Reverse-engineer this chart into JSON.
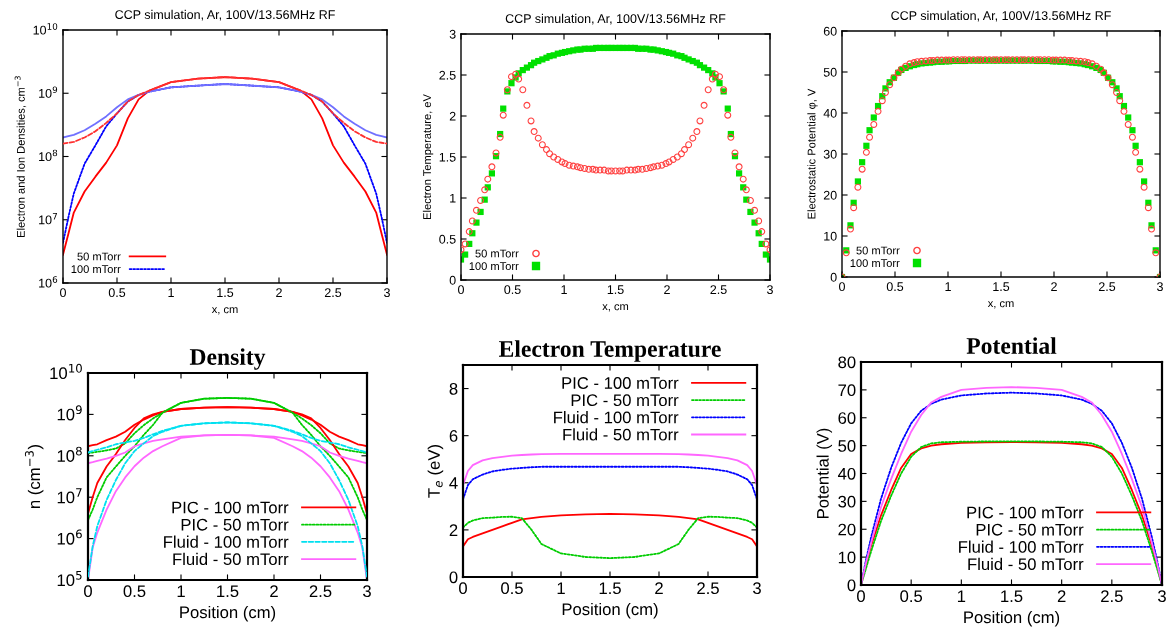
{
  "chart_data": [
    {
      "type": "line",
      "title": "CCP simulation, Ar, 100V/13.56MHz RF",
      "xlabel": "x, cm",
      "ylabel": "Electron and Ion Densities, cm$^{−3}$",
      "log": "y",
      "legend": "bottom left",
      "xlim": [
        0,
        3
      ],
      "ylim": [
        1000000,
        10000000000
      ],
      "xticks": [
        0,
        0.5,
        1,
        1.5,
        2,
        2.5,
        3
      ],
      "yticks": [
        {
          "value": 1000000,
          "label": "10$^{6}$"
        },
        {
          "value": 10000000,
          "label": "10$^{7}$"
        },
        {
          "value": 100000000,
          "label": "10$^{8}$"
        },
        {
          "value": 1000000000,
          "label": "10$^{9}$"
        },
        {
          "value": 10000000000,
          "label": "10$^{10}$"
        }
      ],
      "x": [
        0,
        0.05,
        0.1,
        0.2,
        0.3,
        0.4,
        0.5,
        0.6,
        0.7,
        0.8,
        1,
        1.25,
        1.5,
        1.75,
        2,
        2.2,
        2.3,
        2.4,
        2.5,
        2.6,
        2.7,
        2.8,
        2.9,
        2.95,
        3
      ],
      "series": [
        {
          "name": "50 mTorr",
          "color": "#ff0000",
          "line_style": "solid",
          "values": [
            2800000.0,
            6000000.0,
            13000000.0,
            28000000.0,
            48000000.0,
            80000000.0,
            150000000.0,
            400000000.0,
            800000000.0,
            1100000000.0,
            1500000000.0,
            1700000000.0,
            1800000000.0,
            1700000000.0,
            1500000000.0,
            1100000000.0,
            800000000.0,
            400000000.0,
            150000000.0,
            80000000.0,
            48000000.0,
            28000000.0,
            13000000.0,
            6000000.0,
            2800000.0
          ]
        },
        {
          "name": "100 mTorr",
          "color": "#0000ff",
          "line_style": "dotted",
          "values": [
            4300000.0,
            11000000.0,
            26000000.0,
            77000000.0,
            150000000.0,
            300000000.0,
            480000000.0,
            740000000.0,
            940000000.0,
            1060000000.0,
            1240000000.0,
            1320000000.0,
            1400000000.0,
            1320000000.0,
            1240000000.0,
            1060000000.0,
            940000000.0,
            740000000.0,
            480000000.0,
            300000000.0,
            150000000.0,
            77000000.0,
            26000000.0,
            11000000.0,
            4300000.0
          ]
        },
        {
          "color": "#ff3030",
          "line_style": "dashed",
          "values": [
            160000000.0,
            165000000.0,
            170000000.0,
            200000000.0,
            250000000.0,
            340000000.0,
            480000000.0,
            740000000.0,
            940000000.0,
            1100000000.0,
            1500000000.0,
            1700000000.0,
            1800000000.0,
            1700000000.0,
            1500000000.0,
            1100000000.0,
            940000000.0,
            740000000.0,
            480000000.0,
            340000000.0,
            250000000.0,
            200000000.0,
            170000000.0,
            165000000.0,
            160000000.0
          ]
        },
        {
          "color": "#7070ff",
          "line_style": "solid",
          "values": [
            200000000.0,
            210000000.0,
            220000000.0,
            260000000.0,
            330000000.0,
            430000000.0,
            600000000.0,
            800000000.0,
            940000000.0,
            1060000000.0,
            1240000000.0,
            1320000000.0,
            1400000000.0,
            1320000000.0,
            1240000000.0,
            1060000000.0,
            940000000.0,
            800000000.0,
            600000000.0,
            430000000.0,
            330000000.0,
            260000000.0,
            220000000.0,
            210000000.0,
            200000000.0
          ]
        }
      ]
    },
    {
      "type": "scatter",
      "title": "CCP simulation, Ar, 100V/13.56MHz RF",
      "xlabel": "x, cm",
      "ylabel": "Electron Temperature, eV",
      "legend": "bottom left",
      "xlim": [
        0,
        3
      ],
      "ylim": [
        0,
        3
      ],
      "xticks": [
        0,
        0.5,
        1,
        1.5,
        2,
        2.5,
        3
      ],
      "yticks": [
        0,
        0.5,
        1,
        1.5,
        2,
        2.5,
        3
      ],
      "x": [
        0,
        0.04,
        0.08,
        0.11,
        0.15,
        0.19,
        0.23,
        0.26,
        0.3,
        0.34,
        0.38,
        0.41,
        0.45,
        0.49,
        0.53,
        0.56,
        0.6,
        0.64,
        0.68,
        0.71,
        0.75,
        0.79,
        0.83,
        0.86,
        0.9,
        0.94,
        0.98,
        1.01,
        1.05,
        1.09,
        1.13,
        1.16,
        1.2,
        1.24,
        1.28,
        1.31,
        1.35,
        1.39,
        1.43,
        1.46,
        1.5,
        1.54,
        1.57,
        1.61,
        1.65,
        1.69,
        1.72,
        1.76,
        1.8,
        1.84,
        1.87,
        1.91,
        1.95,
        1.99,
        2.02,
        2.06,
        2.1,
        2.14,
        2.17,
        2.21,
        2.25,
        2.29,
        2.32,
        2.36,
        2.4,
        2.44,
        2.47,
        2.51,
        2.55,
        2.59,
        2.62,
        2.66,
        2.7,
        2.74,
        2.77,
        2.81,
        2.85,
        2.89,
        2.92,
        2.96,
        3
      ],
      "series": [
        {
          "name": "50 mTorr",
          "color": "#ff4040",
          "marker": "circle",
          "values": [
            0.37,
            0.44,
            0.59,
            0.72,
            0.85,
            0.97,
            1.1,
            1.23,
            1.38,
            1.55,
            1.74,
            2.01,
            2.32,
            2.48,
            2.51,
            2.45,
            2.32,
            2.13,
            1.94,
            1.81,
            1.73,
            1.65,
            1.59,
            1.54,
            1.5,
            1.47,
            1.44,
            1.42,
            1.4,
            1.39,
            1.38,
            1.37,
            1.36,
            1.35,
            1.35,
            1.34,
            1.34,
            1.34,
            1.33,
            1.33,
            1.33,
            1.33,
            1.33,
            1.34,
            1.34,
            1.34,
            1.35,
            1.35,
            1.36,
            1.37,
            1.38,
            1.39,
            1.4,
            1.42,
            1.44,
            1.47,
            1.5,
            1.54,
            1.59,
            1.65,
            1.73,
            1.81,
            1.94,
            2.13,
            2.32,
            2.45,
            2.51,
            2.48,
            2.32,
            2.01,
            1.74,
            1.55,
            1.38,
            1.23,
            1.1,
            0.97,
            0.85,
            0.72,
            0.59,
            0.44,
            0.37
          ]
        },
        {
          "name": "100 mTorr",
          "color": "#00e000",
          "marker": "square",
          "values": [
            0.25,
            0.31,
            0.44,
            0.57,
            0.7,
            0.83,
            0.98,
            1.13,
            1.3,
            1.51,
            1.78,
            2.09,
            2.3,
            2.4,
            2.47,
            2.52,
            2.56,
            2.59,
            2.62,
            2.65,
            2.67,
            2.69,
            2.71,
            2.73,
            2.74,
            2.76,
            2.77,
            2.78,
            2.79,
            2.8,
            2.81,
            2.81,
            2.82,
            2.82,
            2.82,
            2.83,
            2.83,
            2.83,
            2.83,
            2.83,
            2.83,
            2.83,
            2.83,
            2.83,
            2.83,
            2.83,
            2.82,
            2.82,
            2.82,
            2.81,
            2.81,
            2.8,
            2.79,
            2.78,
            2.77,
            2.76,
            2.74,
            2.73,
            2.71,
            2.69,
            2.67,
            2.65,
            2.62,
            2.59,
            2.56,
            2.52,
            2.47,
            2.4,
            2.3,
            2.09,
            1.78,
            1.51,
            1.3,
            1.13,
            0.98,
            0.83,
            0.7,
            0.57,
            0.44,
            0.31,
            0.25
          ]
        }
      ]
    },
    {
      "type": "scatter",
      "title": "CCP simulation, Ar, 100V/13.56MHz RF",
      "xlabel": "x, cm",
      "ylabel": "Electrostatic Potential φ, V",
      "legend": "bottom left",
      "xlim": [
        0,
        3
      ],
      "ylim": [
        0,
        60
      ],
      "xticks": [
        0,
        0.5,
        1,
        1.5,
        2,
        2.5,
        3
      ],
      "yticks": [
        0,
        10,
        20,
        30,
        40,
        50,
        60
      ],
      "x": [
        0,
        0.04,
        0.08,
        0.11,
        0.15,
        0.19,
        0.23,
        0.26,
        0.3,
        0.34,
        0.38,
        0.41,
        0.45,
        0.49,
        0.53,
        0.56,
        0.6,
        0.64,
        0.68,
        0.71,
        0.75,
        0.79,
        0.83,
        0.86,
        0.9,
        0.94,
        0.98,
        1.01,
        1.05,
        1.09,
        1.13,
        1.16,
        1.2,
        1.24,
        1.28,
        1.31,
        1.35,
        1.39,
        1.43,
        1.46,
        1.5,
        1.54,
        1.57,
        1.61,
        1.65,
        1.69,
        1.72,
        1.76,
        1.8,
        1.84,
        1.87,
        1.91,
        1.95,
        1.99,
        2.02,
        2.06,
        2.1,
        2.14,
        2.17,
        2.21,
        2.25,
        2.29,
        2.32,
        2.36,
        2.4,
        2.44,
        2.47,
        2.51,
        2.55,
        2.59,
        2.62,
        2.66,
        2.7,
        2.74,
        2.77,
        2.81,
        2.85,
        2.89,
        2.92,
        2.96,
        3
      ],
      "series": [
        {
          "name": "50 mTorr",
          "color": "#ff4040",
          "marker": "circle",
          "values": [
            0,
            5.9,
            11.7,
            16.9,
            21.9,
            26.3,
            30.4,
            34.1,
            37.2,
            40.4,
            43,
            45,
            46.9,
            48.6,
            49.8,
            50.7,
            51.4,
            52,
            52.3,
            52.5,
            52.6,
            52.7,
            52.8,
            52.8,
            52.9,
            52.9,
            52.9,
            52.9,
            53,
            53,
            53,
            53,
            53,
            53,
            53,
            53,
            53,
            53,
            53,
            53,
            53,
            53,
            53,
            53,
            53,
            53,
            53,
            53,
            53,
            53,
            53,
            53,
            53,
            52.9,
            52.9,
            52.9,
            52.9,
            52.8,
            52.8,
            52.7,
            52.6,
            52.5,
            52.3,
            52,
            51.4,
            50.7,
            49.8,
            48.6,
            46.9,
            45,
            43,
            40.4,
            37.2,
            34.1,
            30.4,
            26.3,
            21.9,
            16.9,
            11.7,
            5.9,
            0
          ]
        },
        {
          "name": "100 mTorr",
          "color": "#00e000",
          "marker": "square",
          "values": [
            0,
            6.5,
            12.6,
            18.1,
            23.3,
            28,
            32,
            35.8,
            38.9,
            41.7,
            44.1,
            46,
            47.5,
            48.6,
            49.8,
            50.5,
            51,
            51.4,
            51.7,
            51.9,
            52.1,
            52.2,
            52.3,
            52.4,
            52.5,
            52.5,
            52.6,
            52.6,
            52.7,
            52.7,
            52.7,
            52.7,
            52.8,
            52.8,
            52.8,
            52.8,
            52.8,
            52.8,
            52.8,
            52.8,
            52.8,
            52.8,
            52.8,
            52.8,
            52.8,
            52.8,
            52.8,
            52.8,
            52.8,
            52.7,
            52.7,
            52.7,
            52.7,
            52.6,
            52.6,
            52.5,
            52.5,
            52.4,
            52.3,
            52.2,
            52.1,
            51.9,
            51.7,
            51.4,
            51,
            50.5,
            49.8,
            48.6,
            47.5,
            46,
            44.1,
            41.7,
            38.9,
            35.8,
            32,
            28,
            23.3,
            18.1,
            12.6,
            6.5,
            0
          ]
        }
      ]
    },
    {
      "type": "line",
      "title": "Density",
      "xlabel": "Position (cm)",
      "ylabel": "n (cm$^{−3}$)",
      "log": "y",
      "legend": "bottom right",
      "xlim": [
        0,
        3
      ],
      "ylim": [
        100000,
        10000000000
      ],
      "xticks": [
        0,
        0.5,
        1,
        1.5,
        2,
        2.5,
        3
      ],
      "yticks": [
        {
          "value": 100000,
          "label": "10$^{5}$"
        },
        {
          "value": 1000000,
          "label": "10$^{6}$"
        },
        {
          "value": 10000000,
          "label": "10$^{7}$"
        },
        {
          "value": 100000000,
          "label": "10$^{8}$"
        },
        {
          "value": 1000000000,
          "label": "10$^{9}$"
        },
        {
          "value": 10000000000,
          "label": "10$^{10}$"
        }
      ],
      "x": [
        0,
        0.05,
        0.1,
        0.2,
        0.3,
        0.4,
        0.5,
        0.6,
        0.7,
        0.8,
        1,
        1.25,
        1.5,
        1.75,
        2,
        2.2,
        2.3,
        2.4,
        2.5,
        2.6,
        2.7,
        2.8,
        2.9,
        2.95,
        3
      ],
      "series": [
        {
          "name": "PIC - 100 mTorr",
          "color": "#ff0000",
          "line_style": "solid",
          "values": [
            170000000.0,
            180000000.0,
            190000000.0,
            240000000.0,
            290000000.0,
            380000000.0,
            560000000.0,
            750000000.0,
            950000000.0,
            1150000000.0,
            1350000000.0,
            1450000000.0,
            1500000000.0,
            1450000000.0,
            1350000000.0,
            1150000000.0,
            950000000.0,
            750000000.0,
            560000000.0,
            380000000.0,
            290000000.0,
            240000000.0,
            190000000.0,
            180000000.0,
            170000000.0
          ]
        },
        {
          "name": "PIC - 50 mTorr",
          "color": "#00cc00",
          "line_style": "dotted",
          "values": [
            115000000.0,
            120000000.0,
            125000000.0,
            135000000.0,
            150000000.0,
            200000000.0,
            350000000.0,
            550000000.0,
            800000000.0,
            1100000000.0,
            1900000000.0,
            2400000000.0,
            2500000000.0,
            2400000000.0,
            1900000000.0,
            1100000000.0,
            800000000.0,
            550000000.0,
            350000000.0,
            200000000.0,
            150000000.0,
            135000000.0,
            125000000.0,
            120000000.0,
            115000000.0
          ]
        },
        {
          "name": "Fluid - 100 mTorr",
          "color": "#00e0f0",
          "line_style": "dashed",
          "values": [
            120000.0,
            650000.0,
            2000000.0,
            8600000.0,
            26000000.0,
            66000000.0,
            130000000.0,
            200000000.0,
            300000000.0,
            380000000.0,
            530000000.0,
            610000000.0,
            640000000.0,
            610000000.0,
            530000000.0,
            380000000.0,
            300000000.0,
            200000000.0,
            130000000.0,
            66000000.0,
            26000000.0,
            8600000.0,
            2000000.0,
            650000.0,
            120000.0
          ]
        },
        {
          "name": "Fluid - 50 mTorr",
          "color": "#ff66ff",
          "line_style": "solid",
          "values": [
            100000.0,
            600000.0,
            1400000.0,
            5000000.0,
            14000000.0,
            30000000.0,
            56000000.0,
            90000000.0,
            130000000.0,
            170000000.0,
            270000000.0,
            310000000.0,
            320000000.0,
            310000000.0,
            270000000.0,
            170000000.0,
            130000000.0,
            90000000.0,
            56000000.0,
            30000000.0,
            14000000.0,
            5000000.0,
            1400000.0,
            600000.0,
            100000.0
          ]
        },
        {
          "color": "#ff0000",
          "line_style": "solid",
          "values": [
            4000000.0,
            10000000.0,
            22000000.0,
            55000000.0,
            110000000.0,
            240000000.0,
            470000000.0,
            800000000.0,
            1000000000.0,
            1150000000.0,
            1350000000.0,
            1450000000.0,
            1500000000.0,
            1450000000.0,
            1350000000.0,
            1150000000.0,
            1000000000.0,
            800000000.0,
            470000000.0,
            240000000.0,
            110000000.0,
            55000000.0,
            22000000.0,
            10000000.0,
            4000000.0
          ]
        },
        {
          "color": "#00cc00",
          "line_style": "dotted",
          "values": [
            2800000.0,
            5000000.0,
            10000000.0,
            30000000.0,
            55000000.0,
            100000000.0,
            170000000.0,
            320000000.0,
            560000000.0,
            1100000000.0,
            1900000000.0,
            2400000000.0,
            2500000000.0,
            2400000000.0,
            1900000000.0,
            1100000000.0,
            560000000.0,
            320000000.0,
            170000000.0,
            100000000.0,
            55000000.0,
            30000000.0,
            10000000.0,
            5000000.0,
            2800000.0
          ]
        },
        {
          "color": "#00e0f0",
          "line_style": "dashed",
          "values": [
            120000000.0,
            130000000.0,
            140000000.0,
            160000000.0,
            190000000.0,
            210000000.0,
            230000000.0,
            270000000.0,
            330000000.0,
            400000000.0,
            530000000.0,
            610000000.0,
            640000000.0,
            610000000.0,
            530000000.0,
            400000000.0,
            330000000.0,
            270000000.0,
            230000000.0,
            210000000.0,
            190000000.0,
            160000000.0,
            140000000.0,
            130000000.0,
            120000000.0
          ]
        },
        {
          "color": "#ff66ff",
          "line_style": "solid",
          "values": [
            66000000.0,
            70000000.0,
            75000000.0,
            85000000.0,
            100000000.0,
            120000000.0,
            170000000.0,
            200000000.0,
            230000000.0,
            250000000.0,
            290000000.0,
            310000000.0,
            320000000.0,
            310000000.0,
            290000000.0,
            250000000.0,
            230000000.0,
            200000000.0,
            170000000.0,
            120000000.0,
            100000000.0,
            85000000.0,
            75000000.0,
            70000000.0,
            66000000.0
          ]
        }
      ]
    },
    {
      "type": "line",
      "title": "Electron Temperature",
      "xlabel": "Position (cm)",
      "ylabel": "T$_{e}$ (eV)",
      "legend": "top right",
      "xlim": [
        0,
        3
      ],
      "ylim": [
        0,
        9
      ],
      "xticks": [
        0,
        0.5,
        1,
        1.5,
        2,
        2.5,
        3
      ],
      "yticks": [
        0,
        2,
        4,
        6,
        8
      ],
      "x": [
        0,
        0.05,
        0.1,
        0.2,
        0.3,
        0.4,
        0.5,
        0.6,
        0.7,
        0.8,
        1,
        1.25,
        1.5,
        1.75,
        2,
        2.2,
        2.3,
        2.4,
        2.5,
        2.6,
        2.7,
        2.8,
        2.9,
        2.95,
        3
      ],
      "series": [
        {
          "name": "PIC - 100 mTorr",
          "color": "#ff0000",
          "line_style": "solid",
          "values": [
            1.3,
            1.6,
            1.7,
            1.85,
            2,
            2.15,
            2.3,
            2.45,
            2.5,
            2.55,
            2.62,
            2.66,
            2.68,
            2.66,
            2.62,
            2.55,
            2.5,
            2.45,
            2.3,
            2.15,
            2,
            1.85,
            1.7,
            1.6,
            1.3
          ]
        },
        {
          "name": "PIC - 50 mTorr",
          "color": "#00cc00",
          "line_style": "dotted",
          "values": [
            2.1,
            2.3,
            2.4,
            2.5,
            2.52,
            2.55,
            2.56,
            2.5,
            2,
            1.4,
            1,
            0.85,
            0.8,
            0.85,
            1,
            1.4,
            2,
            2.5,
            2.56,
            2.55,
            2.52,
            2.5,
            2.4,
            2.3,
            2.1
          ]
        },
        {
          "name": "Fluid - 100 mTorr",
          "color": "#0000ff",
          "line_style": "dotted",
          "values": [
            3.3,
            3.9,
            4.15,
            4.35,
            4.48,
            4.55,
            4.6,
            4.63,
            4.66,
            4.68,
            4.68,
            4.68,
            4.68,
            4.68,
            4.68,
            4.68,
            4.66,
            4.63,
            4.6,
            4.55,
            4.48,
            4.35,
            4.15,
            3.9,
            3.3
          ]
        },
        {
          "name": "Fluid - 50 mTorr",
          "color": "#ff66ff",
          "line_style": "solid",
          "values": [
            3.9,
            4.5,
            4.75,
            4.95,
            5.05,
            5.1,
            5.15,
            5.18,
            5.2,
            5.22,
            5.23,
            5.23,
            5.23,
            5.23,
            5.23,
            5.22,
            5.2,
            5.18,
            5.15,
            5.1,
            5.05,
            4.95,
            4.75,
            4.5,
            3.9
          ]
        }
      ]
    },
    {
      "type": "line",
      "title": "Potential",
      "xlabel": "Position (cm)",
      "ylabel": "Potential (V)",
      "legend": "bottom right",
      "xlim": [
        0,
        3
      ],
      "ylim": [
        0,
        80
      ],
      "xticks": [
        0,
        0.5,
        1,
        1.5,
        2,
        2.5,
        3
      ],
      "yticks": [
        0,
        10,
        20,
        30,
        40,
        50,
        60,
        70,
        80
      ],
      "x": [
        0,
        0.05,
        0.1,
        0.2,
        0.3,
        0.4,
        0.5,
        0.6,
        0.7,
        0.8,
        1,
        1.25,
        1.5,
        1.75,
        2,
        2.2,
        2.3,
        2.4,
        2.5,
        2.6,
        2.7,
        2.8,
        2.9,
        2.95,
        3
      ],
      "series": [
        {
          "name": "PIC - 100 mTorr",
          "color": "#ff0000",
          "line_style": "solid",
          "values": [
            0,
            7,
            14,
            25,
            34,
            42,
            47,
            49,
            50,
            50.5,
            51,
            51.2,
            51.3,
            51.2,
            51,
            50.5,
            50,
            49,
            47,
            42,
            34,
            25,
            14,
            7,
            0
          ]
        },
        {
          "name": "PIC - 50 mTorr",
          "color": "#00cc00",
          "line_style": "dotted",
          "values": [
            0,
            6,
            12,
            23,
            32,
            40,
            46,
            49.5,
            50.8,
            51.2,
            51.4,
            51.5,
            51.5,
            51.5,
            51.4,
            51.2,
            50.8,
            49.5,
            46,
            40,
            32,
            23,
            12,
            6,
            0
          ]
        },
        {
          "name": "Fluid - 100 mTorr",
          "color": "#0000ff",
          "line_style": "dotted",
          "values": [
            0,
            9,
            17,
            31,
            42,
            51,
            58,
            62.5,
            65,
            66.5,
            68,
            68.7,
            69,
            68.7,
            68,
            66.5,
            65,
            62.5,
            58,
            51,
            42,
            31,
            17,
            9,
            0
          ]
        },
        {
          "name": "Fluid - 50 mTorr",
          "color": "#ff66ff",
          "line_style": "solid",
          "values": [
            0,
            8,
            15,
            28,
            38,
            47,
            55,
            61,
            65.5,
            67.5,
            70,
            70.7,
            71,
            70.7,
            70,
            67.5,
            65.5,
            61,
            55,
            47,
            38,
            28,
            15,
            8,
            0
          ]
        }
      ]
    }
  ]
}
